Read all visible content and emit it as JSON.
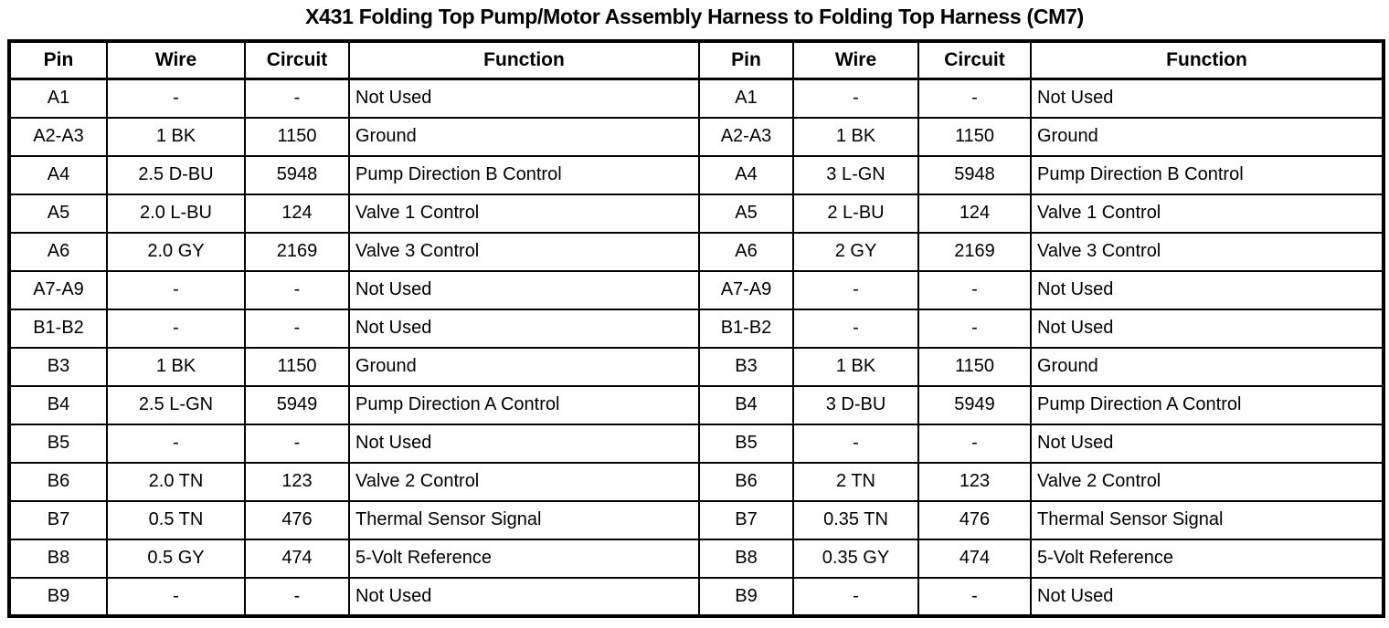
{
  "title": "X431 Folding Top Pump/Motor Assembly Harness to Folding Top Harness (CM7)",
  "table": {
    "header": [
      "Pin",
      "Wire",
      "Circuit",
      "Function",
      "Pin",
      "Wire",
      "Circuit",
      "Function"
    ],
    "rows": [
      [
        "A1",
        "-",
        "-",
        "Not Used",
        "A1",
        "-",
        "-",
        "Not Used"
      ],
      [
        "A2-A3",
        "1 BK",
        "1150",
        "Ground",
        "A2-A3",
        "1 BK",
        "1150",
        "Ground"
      ],
      [
        "A4",
        "2.5 D-BU",
        "5948",
        "Pump Direction B Control",
        "A4",
        "3 L-GN",
        "5948",
        "Pump Direction B Control"
      ],
      [
        "A5",
        "2.0 L-BU",
        "124",
        "Valve 1 Control",
        "A5",
        "2 L-BU",
        "124",
        "Valve 1 Control"
      ],
      [
        "A6",
        "2.0 GY",
        "2169",
        "Valve 3 Control",
        "A6",
        "2 GY",
        "2169",
        "Valve 3 Control"
      ],
      [
        "A7-A9",
        "-",
        "-",
        "Not Used",
        "A7-A9",
        "-",
        "-",
        "Not Used"
      ],
      [
        "B1-B2",
        "-",
        "-",
        "Not Used",
        "B1-B2",
        "-",
        "-",
        "Not Used"
      ],
      [
        "B3",
        "1 BK",
        "1150",
        "Ground",
        "B3",
        "1 BK",
        "1150",
        "Ground"
      ],
      [
        "B4",
        "2.5 L-GN",
        "5949",
        "Pump Direction A Control",
        "B4",
        "3 D-BU",
        "5949",
        "Pump Direction A Control"
      ],
      [
        "B5",
        "-",
        "-",
        "Not Used",
        "B5",
        "-",
        "-",
        "Not Used"
      ],
      [
        "B6",
        "2.0 TN",
        "123",
        "Valve 2 Control",
        "B6",
        "2 TN",
        "123",
        "Valve 2 Control"
      ],
      [
        "B7",
        "0.5 TN",
        "476",
        "Thermal Sensor Signal",
        "B7",
        "0.35 TN",
        "476",
        "Thermal Sensor Signal"
      ],
      [
        "B8",
        "0.5 GY",
        "474",
        "5-Volt Reference",
        "B8",
        "0.35 GY",
        "474",
        "5-Volt Reference"
      ],
      [
        "B9",
        "-",
        "-",
        "Not Used",
        "B9",
        "-",
        "-",
        "Not Used"
      ]
    ]
  }
}
